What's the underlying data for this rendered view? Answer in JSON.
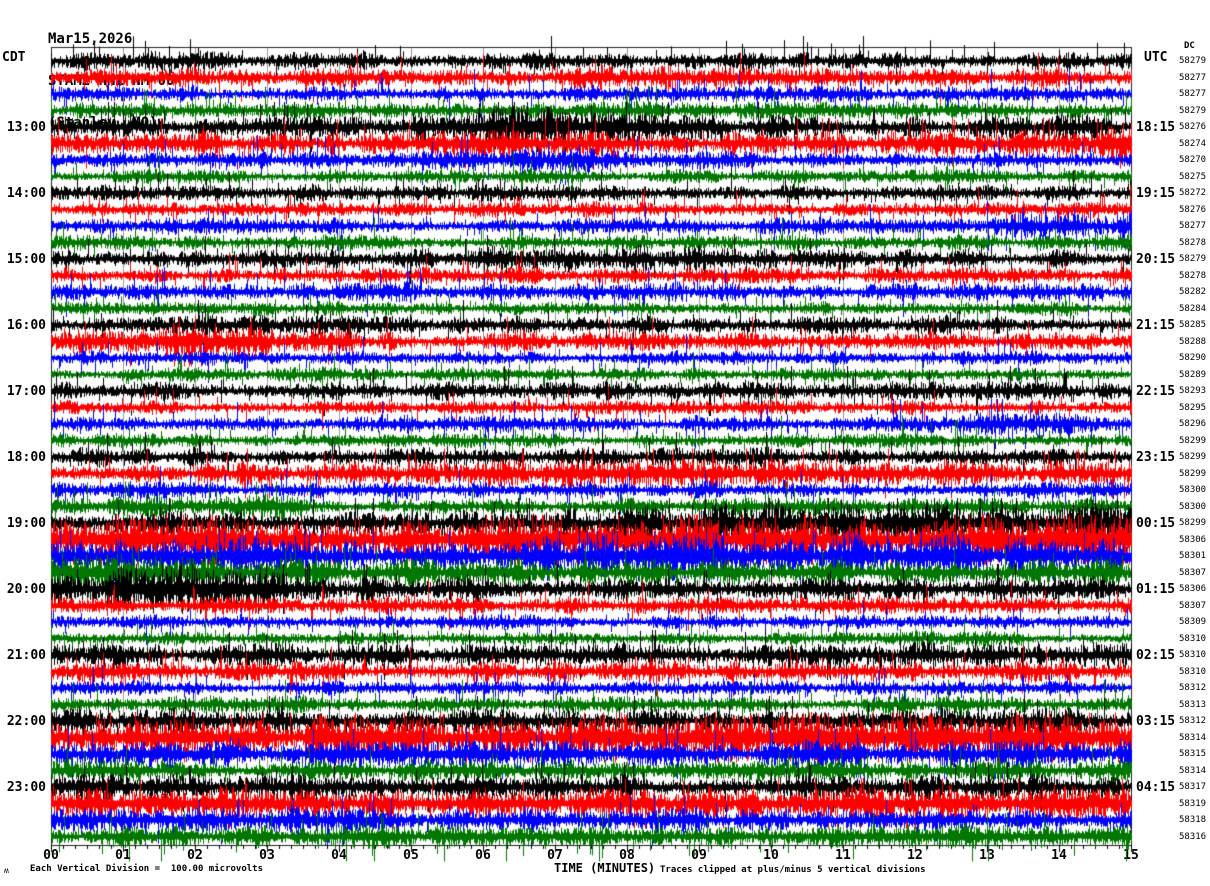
{
  "header": {
    "date": "Mar15,2026",
    "station": "STAM2 HNZ NM 00",
    "location": "(Stanley, MO)"
  },
  "axes": {
    "left_timezone": "CDT",
    "right_timezone": "UTC",
    "dc_header": "DC",
    "x_title": "TIME (MINUTES)",
    "x_ticks": [
      "00",
      "01",
      "02",
      "03",
      "04",
      "05",
      "06",
      "07",
      "08",
      "09",
      "10",
      "11",
      "12",
      "13",
      "14",
      "15"
    ]
  },
  "footer": {
    "scale_note": "Each Vertical Division =  100.00 microvolts",
    "clip_note": "Traces clipped at plus/minus 5 vertical divisions",
    "watermark": "ʍ"
  },
  "chart_data": {
    "type": "line",
    "title": "Helicorder seismogram STAM2 HNZ NM 00 Mar15,2026 (Stanley, MO)",
    "xlabel": "TIME (MINUTES)",
    "x_range_minutes": [
      0,
      15
    ],
    "minutes_per_line": 15,
    "vertical_division_microvolts": 100.0,
    "clip_divisions": 5,
    "grid": "vertical gridline each minute",
    "trace_colors": {
      "black": "#000000",
      "red": "#ff0000",
      "blue": "#0000ff",
      "green": "#007700"
    },
    "rows": [
      {
        "cdt": "",
        "utc": "",
        "dc": 58279,
        "color": "black",
        "amp": 8
      },
      {
        "cdt": "",
        "utc": "",
        "dc": 58277,
        "color": "red",
        "amp": 8,
        "env": [
          1,
          1.1,
          1,
          1,
          1.3,
          1,
          1.1,
          1
        ]
      },
      {
        "cdt": "",
        "utc": "",
        "dc": 58277,
        "color": "blue",
        "amp": 7
      },
      {
        "cdt": "",
        "utc": "",
        "dc": 58279,
        "color": "green",
        "amp": 7
      },
      {
        "cdt": "13:00",
        "utc": "18:15",
        "dc": 58276,
        "color": "black",
        "amp": 9,
        "env": [
          1,
          1,
          1.2,
          1.9,
          1.4,
          1,
          1.1,
          1.2
        ]
      },
      {
        "cdt": "",
        "utc": "",
        "dc": 58274,
        "color": "red",
        "amp": 9,
        "env": [
          1,
          1.2,
          1,
          1.3,
          1,
          1.2,
          1.1,
          1.9
        ]
      },
      {
        "cdt": "",
        "utc": "",
        "dc": 58270,
        "color": "blue",
        "amp": 7,
        "env": [
          1,
          1,
          1,
          1.4,
          1.1,
          1,
          1,
          1.2
        ]
      },
      {
        "cdt": "",
        "utc": "",
        "dc": 58275,
        "color": "green",
        "amp": 6
      },
      {
        "cdt": "14:00",
        "utc": "19:15",
        "dc": 58272,
        "color": "black",
        "amp": 7
      },
      {
        "cdt": "",
        "utc": "",
        "dc": 58276,
        "color": "red",
        "amp": 6.5
      },
      {
        "cdt": "",
        "utc": "",
        "dc": 58277,
        "color": "blue",
        "amp": 7,
        "env": [
          1,
          1,
          1,
          1,
          1,
          1,
          1.2,
          2
        ]
      },
      {
        "cdt": "",
        "utc": "",
        "dc": 58278,
        "color": "green",
        "amp": 7
      },
      {
        "cdt": "15:00",
        "utc": "20:15",
        "dc": 58279,
        "color": "black",
        "amp": 8,
        "env": [
          1,
          1,
          1,
          1.3,
          1.5,
          1.2,
          1,
          1
        ]
      },
      {
        "cdt": "",
        "utc": "",
        "dc": 58278,
        "color": "red",
        "amp": 7
      },
      {
        "cdt": "",
        "utc": "",
        "dc": 58282,
        "color": "blue",
        "amp": 8
      },
      {
        "cdt": "",
        "utc": "",
        "dc": 58284,
        "color": "green",
        "amp": 6
      },
      {
        "cdt": "16:00",
        "utc": "21:15",
        "dc": 58285,
        "color": "black",
        "amp": 8
      },
      {
        "cdt": "",
        "utc": "",
        "dc": 58288,
        "color": "red",
        "amp": 8,
        "env": [
          1,
          2.2,
          1,
          1,
          1,
          1,
          1,
          1
        ]
      },
      {
        "cdt": "",
        "utc": "",
        "dc": 58290,
        "color": "blue",
        "amp": 6
      },
      {
        "cdt": "",
        "utc": "",
        "dc": 58289,
        "color": "green",
        "amp": 6
      },
      {
        "cdt": "17:00",
        "utc": "22:15",
        "dc": 58293,
        "color": "black",
        "amp": 8
      },
      {
        "cdt": "",
        "utc": "",
        "dc": 58295,
        "color": "red",
        "amp": 6
      },
      {
        "cdt": "",
        "utc": "",
        "dc": 58296,
        "color": "blue",
        "amp": 7,
        "env": [
          1,
          1,
          1,
          1,
          1,
          1,
          1.5,
          1
        ]
      },
      {
        "cdt": "",
        "utc": "",
        "dc": 58299,
        "color": "green",
        "amp": 6
      },
      {
        "cdt": "18:00",
        "utc": "23:15",
        "dc": 58299,
        "color": "black",
        "amp": 8
      },
      {
        "cdt": "",
        "utc": "",
        "dc": 58299,
        "color": "red",
        "amp": 9,
        "env": [
          1,
          1,
          1.5,
          1.2,
          1.6,
          1.2,
          1.3,
          1.2
        ]
      },
      {
        "cdt": "",
        "utc": "",
        "dc": 58300,
        "color": "blue",
        "amp": 7
      },
      {
        "cdt": "",
        "utc": "",
        "dc": 58300,
        "color": "green",
        "amp": 7,
        "env": [
          1,
          1.8,
          1,
          1,
          1,
          1,
          1,
          1
        ]
      },
      {
        "cdt": "19:00",
        "utc": "00:15",
        "dc": 58299,
        "color": "black",
        "amp": 10,
        "env": [
          1,
          1,
          1,
          1.2,
          1.6,
          1.9,
          2,
          2
        ]
      },
      {
        "cdt": "",
        "utc": "",
        "dc": 58306,
        "color": "red",
        "amp": 20
      },
      {
        "cdt": "",
        "utc": "",
        "dc": 58301,
        "color": "blue",
        "amp": 13,
        "env": [
          1.2,
          1.4,
          1,
          1.2,
          1.4,
          1.2,
          1.3,
          1.2
        ]
      },
      {
        "cdt": "",
        "utc": "",
        "dc": 58307,
        "color": "green",
        "amp": 12,
        "env": [
          1.5,
          1.2,
          1,
          1,
          1,
          1,
          1,
          1.1
        ]
      },
      {
        "cdt": "20:00",
        "utc": "01:15",
        "dc": 58306,
        "color": "black",
        "amp": 12,
        "env": [
          1.7,
          1.4,
          1,
          0.85,
          0.8,
          0.8,
          0.8,
          0.9
        ]
      },
      {
        "cdt": "",
        "utc": "",
        "dc": 58307,
        "color": "red",
        "amp": 8
      },
      {
        "cdt": "",
        "utc": "",
        "dc": 58309,
        "color": "blue",
        "amp": 6
      },
      {
        "cdt": "",
        "utc": "",
        "dc": 58310,
        "color": "green",
        "amp": 5.5
      },
      {
        "cdt": "21:00",
        "utc": "02:15",
        "dc": 58310,
        "color": "black",
        "amp": 10
      },
      {
        "cdt": "",
        "utc": "",
        "dc": 58310,
        "color": "red",
        "amp": 9
      },
      {
        "cdt": "",
        "utc": "",
        "dc": 58312,
        "color": "blue",
        "amp": 6
      },
      {
        "cdt": "",
        "utc": "",
        "dc": 58313,
        "color": "green",
        "amp": 7
      },
      {
        "cdt": "22:00",
        "utc": "03:15",
        "dc": 58312,
        "color": "black",
        "amp": 11
      },
      {
        "cdt": "",
        "utc": "",
        "dc": 58314,
        "color": "red",
        "amp": 15,
        "env": [
          1.2,
          1,
          1.3,
          1,
          1.2,
          1.4,
          1.1,
          1.3
        ]
      },
      {
        "cdt": "",
        "utc": "",
        "dc": 58315,
        "color": "blue",
        "amp": 11
      },
      {
        "cdt": "",
        "utc": "",
        "dc": 58314,
        "color": "green",
        "amp": 9
      },
      {
        "cdt": "23:00",
        "utc": "04:15",
        "dc": 58317,
        "color": "black",
        "amp": 11
      },
      {
        "cdt": "",
        "utc": "",
        "dc": 58319,
        "color": "red",
        "amp": 15
      },
      {
        "cdt": "",
        "utc": "",
        "dc": 58318,
        "color": "blue",
        "amp": 10
      },
      {
        "cdt": "",
        "utc": "",
        "dc": 58316,
        "color": "green",
        "amp": 10
      }
    ]
  }
}
